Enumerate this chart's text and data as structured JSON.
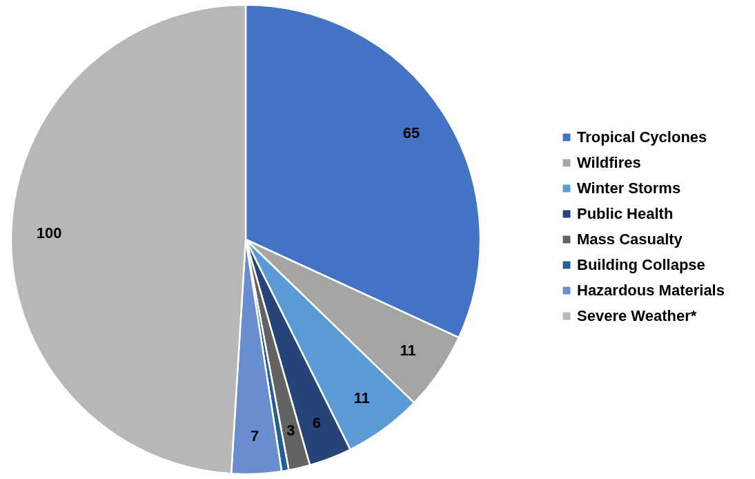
{
  "chart_data": {
    "type": "pie",
    "categories": [
      "Tropical Cyclones",
      "Wildfires",
      "Winter Storms",
      "Public Health",
      "Mass Casualty",
      "Building Collapse",
      "Hazardous Materials",
      "Severe Weather*"
    ],
    "values": [
      65,
      11,
      11,
      6,
      3,
      1,
      7,
      100
    ],
    "value_labels": [
      "65",
      "11",
      "11",
      "6",
      "3",
      null,
      "7",
      "100"
    ],
    "colors": [
      "#4472c4",
      "#a5a5a5",
      "#5b9bd5",
      "#264478",
      "#636363",
      "#255e91",
      "#698ed0",
      "#b7b7b7"
    ],
    "legend": "right"
  }
}
